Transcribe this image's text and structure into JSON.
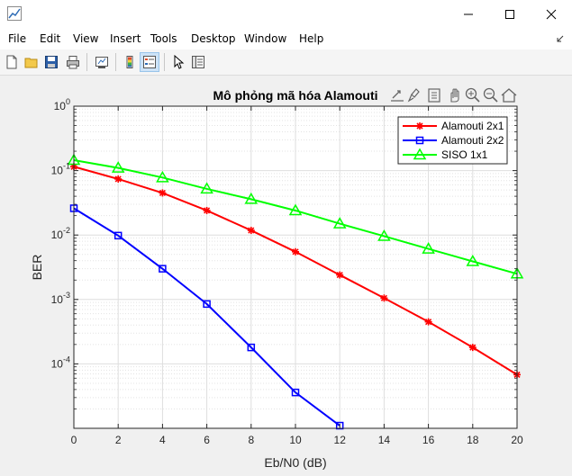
{
  "window": {
    "title": ""
  },
  "menu": [
    "File",
    "Edit",
    "View",
    "Insert",
    "Tools",
    "Desktop",
    "Window",
    "Help"
  ],
  "toolbar_icons": [
    "new-figure-icon",
    "open-file-icon",
    "save-icon",
    "print-icon",
    "link-plot-icon",
    "insert-colorbar-icon",
    "insert-legend-icon",
    "edit-plot-icon",
    "property-inspector-icon"
  ],
  "axes_toolbar_icons": [
    "export-icon",
    "brush-icon",
    "data-tips-icon",
    "pan-icon",
    "zoom-in-icon",
    "zoom-out-icon",
    "home-icon"
  ],
  "colors": {
    "red": "#ff0000",
    "blue": "#0000ff",
    "green": "#00ff00"
  },
  "chart_data": {
    "type": "line",
    "title": "Mô phỏng mã hóa Alamouti",
    "xlabel": "Eb/N0 (dB)",
    "ylabel": "BER",
    "xlim": [
      0,
      20
    ],
    "ylim": [
      1e-05,
      1
    ],
    "yscale": "log",
    "grid": true,
    "minor_grid": true,
    "legend_position": "top-right",
    "x_ticks": [
      "0",
      "2",
      "4",
      "6",
      "8",
      "10",
      "12",
      "14",
      "16",
      "18",
      "20"
    ],
    "y_ticks": [
      {
        "value": 1,
        "base": "10",
        "exp": "0"
      },
      {
        "value": 0.1,
        "base": "10",
        "exp": "-1"
      },
      {
        "value": 0.01,
        "base": "10",
        "exp": "-2"
      },
      {
        "value": 0.001,
        "base": "10",
        "exp": "-3"
      },
      {
        "value": 0.0001,
        "base": "10",
        "exp": "-4"
      }
    ],
    "series": [
      {
        "name": "Alamouti 2x1",
        "color": "#ff0000",
        "marker": "star",
        "x": [
          0,
          2,
          4,
          6,
          8,
          10,
          12,
          14,
          16,
          18,
          20
        ],
        "y": [
          0.115,
          0.074,
          0.045,
          0.024,
          0.0118,
          0.0055,
          0.0024,
          0.00105,
          0.00045,
          0.00018,
          6.8e-05
        ]
      },
      {
        "name": "Alamouti 2x2",
        "color": "#0000ff",
        "marker": "square",
        "x": [
          0,
          2,
          4,
          6,
          8,
          10,
          12
        ],
        "y": [
          0.026,
          0.0098,
          0.003,
          0.00085,
          0.00018,
          3.6e-05,
          1.1e-05
        ]
      },
      {
        "name": "SISO 1x1",
        "color": "#00ff00",
        "marker": "triangle",
        "x": [
          0,
          2,
          4,
          6,
          8,
          10,
          12,
          14,
          16,
          18,
          20
        ],
        "y": [
          0.145,
          0.11,
          0.078,
          0.052,
          0.036,
          0.024,
          0.015,
          0.0096,
          0.0061,
          0.0039,
          0.0025
        ]
      }
    ]
  }
}
